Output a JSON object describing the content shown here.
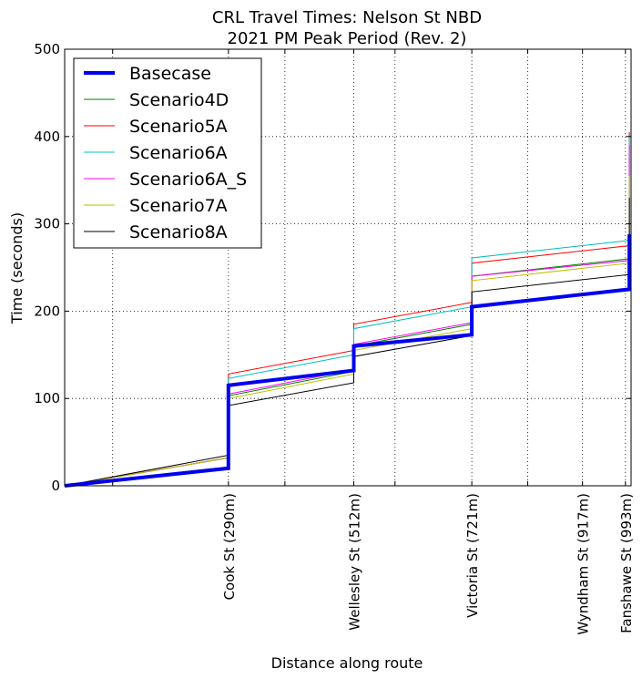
{
  "chart_data": {
    "type": "line",
    "title_lines": [
      "CRL Travel Times: Nelson St NBD",
      "2021 PM Peak Period (Rev. 2)"
    ],
    "xlabel": "Distance along route",
    "ylabel": "Time (seconds)",
    "xlim": [
      0,
      1003
    ],
    "ylim": [
      0,
      500
    ],
    "yticks": [
      0,
      100,
      200,
      300,
      400,
      500
    ],
    "xticks": [
      {
        "x": 290,
        "label": "Cook St (290m)"
      },
      {
        "x": 512,
        "label": "Wellesley St (512m)"
      },
      {
        "x": 721,
        "label": "Victoria St (721m)"
      },
      {
        "x": 917,
        "label": "Wyndham St (917m)"
      },
      {
        "x": 993,
        "label": "Fanshawe St (993m)"
      }
    ],
    "minor_gridlines_x": [
      85,
      390,
      585,
      820
    ],
    "grid": true,
    "legend_position": "upper-left",
    "series": [
      {
        "name": "Basecase",
        "color": "#0000ee",
        "linewidth": 4,
        "points": [
          [
            0,
            0
          ],
          [
            290,
            20
          ],
          [
            290,
            115
          ],
          [
            512,
            132
          ],
          [
            512,
            160
          ],
          [
            721,
            173
          ],
          [
            721,
            205
          ],
          [
            1000,
            225
          ],
          [
            1000,
            288
          ]
        ]
      },
      {
        "name": "Scenario4D",
        "color": "#008000",
        "linewidth": 1,
        "points": [
          [
            0,
            0
          ],
          [
            290,
            32
          ],
          [
            290,
            103
          ],
          [
            512,
            131
          ],
          [
            512,
            160
          ],
          [
            721,
            185
          ],
          [
            721,
            240
          ],
          [
            1000,
            260
          ],
          [
            1000,
            300
          ]
        ]
      },
      {
        "name": "Scenario5A",
        "color": "#ff0000",
        "linewidth": 1,
        "points": [
          [
            0,
            0
          ],
          [
            290,
            32
          ],
          [
            290,
            128
          ],
          [
            512,
            155
          ],
          [
            512,
            185
          ],
          [
            721,
            210
          ],
          [
            721,
            255
          ],
          [
            1000,
            275
          ],
          [
            1000,
            405
          ]
        ]
      },
      {
        "name": "Scenario6A",
        "color": "#00bfbf",
        "linewidth": 1,
        "points": [
          [
            0,
            0
          ],
          [
            290,
            32
          ],
          [
            290,
            123
          ],
          [
            512,
            150
          ],
          [
            512,
            180
          ],
          [
            721,
            205
          ],
          [
            721,
            261
          ],
          [
            1000,
            281
          ],
          [
            1000,
            400
          ]
        ]
      },
      {
        "name": "Scenario6A_S",
        "color": "#ff00ff",
        "linewidth": 1,
        "points": [
          [
            0,
            0
          ],
          [
            290,
            32
          ],
          [
            290,
            105
          ],
          [
            512,
            133
          ],
          [
            512,
            162
          ],
          [
            721,
            187
          ],
          [
            721,
            240
          ],
          [
            1000,
            258
          ],
          [
            1000,
            390
          ]
        ]
      },
      {
        "name": "Scenario7A",
        "color": "#bfbf00",
        "linewidth": 1,
        "points": [
          [
            0,
            0
          ],
          [
            290,
            32
          ],
          [
            290,
            100
          ],
          [
            512,
            128
          ],
          [
            512,
            155
          ],
          [
            721,
            180
          ],
          [
            721,
            235
          ],
          [
            1000,
            255
          ],
          [
            1000,
            355
          ]
        ]
      },
      {
        "name": "Scenario8A",
        "color": "#000000",
        "linewidth": 1,
        "points": [
          [
            0,
            0
          ],
          [
            290,
            35
          ],
          [
            290,
            92
          ],
          [
            512,
            118
          ],
          [
            512,
            148
          ],
          [
            721,
            172
          ],
          [
            721,
            222
          ],
          [
            1000,
            242
          ],
          [
            1000,
            330
          ]
        ]
      }
    ]
  }
}
